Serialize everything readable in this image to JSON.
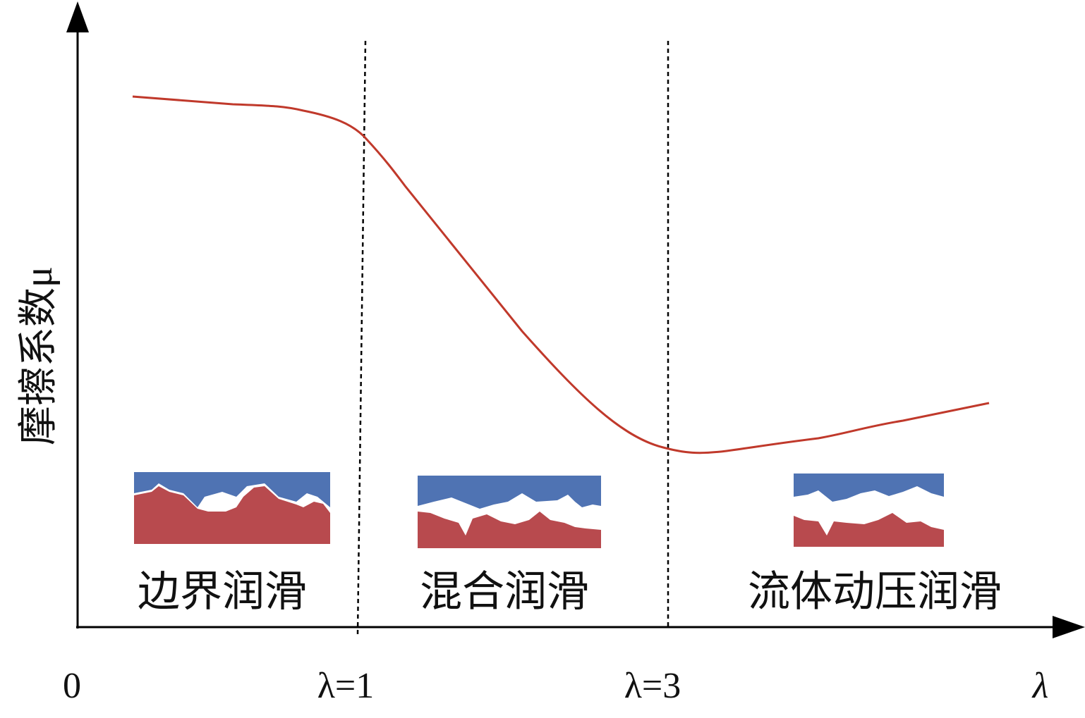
{
  "axis": {
    "y_label": "摩擦系数μ",
    "origin": "0",
    "x_label": "λ",
    "markers": [
      "λ=1",
      "λ=3"
    ]
  },
  "regions": [
    "边界润滑",
    "混合润滑",
    "流体动压润滑"
  ]
}
